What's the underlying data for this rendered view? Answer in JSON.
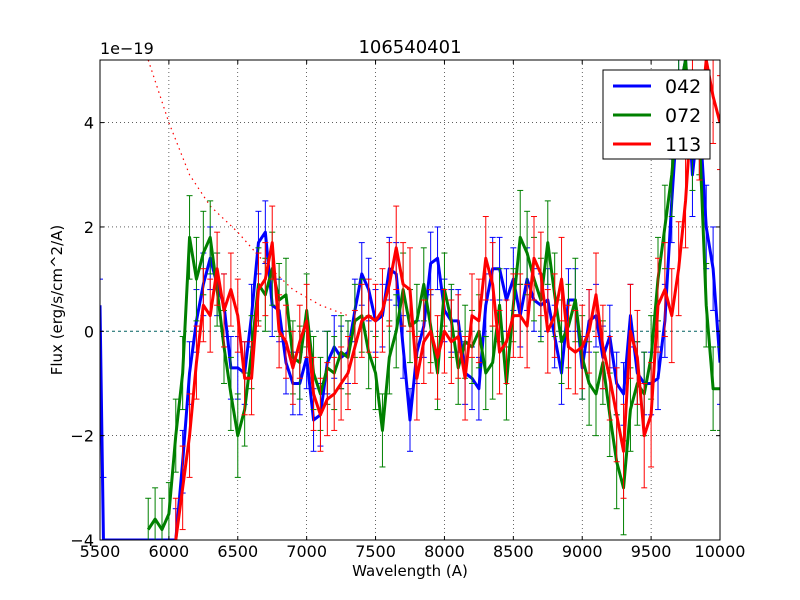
{
  "chart_data": {
    "type": "line",
    "title": "106540401",
    "xlabel": "Wavelength (A)",
    "ylabel": "Flux (erg/s/cm^2/A)",
    "y_scale_label": "1e−19",
    "xlim": [
      5500,
      10000
    ],
    "ylim": [
      -4.0,
      5.2
    ],
    "xticks": [
      5500,
      6000,
      6500,
      7000,
      7500,
      8000,
      8500,
      9000,
      9500,
      10000
    ],
    "xtick_labels": [
      "5500",
      "6000",
      "6500",
      "7000",
      "7500",
      "8000",
      "8500",
      "9000",
      "9500",
      "10000"
    ],
    "yticks": [
      -4,
      -2,
      0,
      2,
      4
    ],
    "ytick_labels": [
      "−4",
      "−2",
      "0",
      "2",
      "4"
    ],
    "grid": true,
    "legend_position": "top-right",
    "reference_lines": [
      {
        "name": "zero-line",
        "style": "dashed",
        "color": "#006060",
        "y": 0
      },
      {
        "name": "sky-model",
        "style": "dotted",
        "color": "#ff0000",
        "x": [
          5850,
          6000,
          6150,
          6300,
          6500,
          6700,
          6900,
          7100,
          7300
        ],
        "y": [
          5.2,
          4.0,
          3.0,
          2.4,
          1.9,
          1.3,
          0.8,
          0.5,
          0.3
        ]
      }
    ],
    "series": [
      {
        "name": "042",
        "color": "#0000ff",
        "x": [
          5500,
          5525,
          6050,
          6100,
          6150,
          6200,
          6250,
          6300,
          6350,
          6400,
          6450,
          6500,
          6550,
          6600,
          6650,
          6700,
          6750,
          6800,
          6850,
          6900,
          6950,
          7000,
          7050,
          7100,
          7150,
          7200,
          7250,
          7300,
          7350,
          7400,
          7450,
          7500,
          7550,
          7600,
          7650,
          7700,
          7750,
          7800,
          7850,
          7900,
          7950,
          8000,
          8050,
          8100,
          8150,
          8200,
          8250,
          8300,
          8350,
          8400,
          8450,
          8500,
          8550,
          8600,
          8650,
          8700,
          8750,
          8800,
          8850,
          8900,
          8950,
          9000,
          9050,
          9100,
          9150,
          9200,
          9250,
          9300,
          9350,
          9400,
          9450,
          9500,
          9550,
          9600,
          9650,
          9700,
          9750,
          9800,
          9850,
          9900,
          9950,
          10000
        ],
        "y": [
          0.5,
          -4.0,
          -4.0,
          -2.5,
          -0.8,
          0.2,
          0.9,
          1.4,
          0.9,
          0.5,
          -0.7,
          -0.7,
          -0.8,
          0.3,
          1.7,
          1.9,
          0.5,
          0.4,
          -0.6,
          -1.0,
          -1.0,
          -0.5,
          -1.7,
          -1.6,
          -0.6,
          -0.3,
          -0.5,
          -0.4,
          0.4,
          1.1,
          0.8,
          0.2,
          0.3,
          1.2,
          1.1,
          -0.3,
          -1.7,
          -0.4,
          0.1,
          1.3,
          1.4,
          0.4,
          0.2,
          0.2,
          -0.8,
          -0.9,
          -1.1,
          0.5,
          1.2,
          1.2,
          0.6,
          1.0,
          0.3,
          1.0,
          0.6,
          0.5,
          0.6,
          -0.1,
          -0.8,
          0.6,
          0.6,
          -0.7,
          0.2,
          0.3,
          -0.5,
          -0.1,
          -1.0,
          -1.2,
          0.3,
          -0.8,
          -1.0,
          -1.0,
          -0.9,
          0.2,
          2.5,
          4.5,
          5.2,
          3.0,
          4.2,
          2.0,
          1.2,
          -0.6
        ],
        "err": [
          0.5,
          1.2,
          0.6,
          0.6,
          0.6,
          0.6,
          0.6,
          0.6,
          0.6,
          0.6,
          0.6,
          0.6,
          0.6,
          0.6,
          0.6,
          0.6,
          0.6,
          0.6,
          0.6,
          0.6,
          0.6,
          0.6,
          0.6,
          0.6,
          0.6,
          0.6,
          0.6,
          0.6,
          0.6,
          0.6,
          0.6,
          0.6,
          0.6,
          0.6,
          0.6,
          0.6,
          0.6,
          0.6,
          0.6,
          0.6,
          0.6,
          0.6,
          0.6,
          0.6,
          0.6,
          0.6,
          0.6,
          0.6,
          0.6,
          0.6,
          0.6,
          0.6,
          0.6,
          0.6,
          0.6,
          0.6,
          0.6,
          0.6,
          0.6,
          0.6,
          0.6,
          0.6,
          0.6,
          0.6,
          0.6,
          0.6,
          0.6,
          0.6,
          0.6,
          0.6,
          0.6,
          0.6,
          0.6,
          0.7,
          0.8,
          0.8,
          0.8,
          0.8,
          0.8,
          0.8,
          0.8,
          0.8
        ]
      },
      {
        "name": "072",
        "color": "#008000",
        "x": [
          5850,
          5900,
          5950,
          6000,
          6050,
          6100,
          6150,
          6200,
          6250,
          6300,
          6350,
          6400,
          6450,
          6500,
          6550,
          6600,
          6650,
          6700,
          6750,
          6800,
          6850,
          6900,
          6950,
          7000,
          7050,
          7100,
          7150,
          7200,
          7250,
          7300,
          7350,
          7400,
          7450,
          7500,
          7550,
          7600,
          7650,
          7700,
          7750,
          7800,
          7850,
          7900,
          7950,
          8000,
          8050,
          8100,
          8150,
          8200,
          8250,
          8300,
          8350,
          8400,
          8450,
          8500,
          8550,
          8600,
          8650,
          8700,
          8750,
          8800,
          8850,
          8900,
          8950,
          9000,
          9050,
          9100,
          9150,
          9200,
          9250,
          9300,
          9350,
          9400,
          9450,
          9500,
          9550,
          9600,
          9650,
          9700,
          9750,
          9800,
          9850,
          9900,
          9950,
          10000
        ],
        "y": [
          -3.8,
          -3.6,
          -3.8,
          -3.5,
          -2.0,
          -0.8,
          1.8,
          1.0,
          1.5,
          1.8,
          0.8,
          -0.3,
          -1.2,
          -2.0,
          -1.5,
          -0.4,
          0.9,
          0.7,
          1.2,
          0.6,
          0.7,
          -0.5,
          -0.6,
          0.4,
          -0.8,
          -1.2,
          -0.7,
          -0.8,
          -0.4,
          -0.5,
          0.2,
          0.3,
          -0.4,
          -0.8,
          -1.9,
          -0.5,
          0.0,
          0.8,
          0.1,
          0.2,
          0.9,
          0.1,
          -0.8,
          0.8,
          0.2,
          -0.7,
          -0.2,
          -0.3,
          0.0,
          -0.8,
          -0.6,
          0.5,
          -1.0,
          0.5,
          1.8,
          1.5,
          1.0,
          0.6,
          1.7,
          0.7,
          -0.2,
          0.1,
          0.6,
          -0.5,
          -1.0,
          -1.2,
          -0.6,
          -1.6,
          -2.5,
          -3.0,
          -1.5,
          -1.0,
          -1.2,
          -0.5,
          1.0,
          2.0,
          3.0,
          4.5,
          5.2,
          3.5,
          3.8,
          0.5,
          -1.1,
          -1.1
        ],
        "err": [
          0.6,
          0.6,
          0.6,
          0.6,
          0.7,
          0.7,
          0.8,
          0.8,
          0.8,
          0.7,
          0.7,
          0.7,
          0.7,
          0.8,
          0.7,
          0.7,
          0.7,
          0.7,
          0.7,
          0.7,
          0.7,
          0.7,
          0.7,
          0.7,
          0.7,
          0.7,
          0.7,
          0.7,
          0.7,
          0.7,
          0.7,
          0.7,
          0.7,
          0.7,
          0.7,
          0.7,
          0.7,
          0.7,
          0.7,
          0.7,
          0.7,
          0.7,
          0.7,
          0.7,
          0.7,
          0.7,
          0.7,
          0.7,
          0.7,
          0.7,
          0.7,
          0.7,
          0.7,
          0.7,
          0.9,
          0.8,
          0.8,
          0.8,
          0.8,
          0.8,
          0.8,
          0.8,
          0.8,
          0.8,
          0.8,
          0.8,
          0.8,
          0.8,
          0.9,
          0.9,
          0.8,
          0.8,
          0.8,
          0.8,
          0.8,
          0.8,
          0.8,
          0.8,
          0.8,
          0.8,
          0.8,
          0.8,
          0.8,
          0.8
        ]
      },
      {
        "name": "113",
        "color": "#ff0000",
        "x": [
          6050,
          6100,
          6150,
          6200,
          6250,
          6300,
          6350,
          6400,
          6450,
          6500,
          6550,
          6600,
          6650,
          6700,
          6750,
          6800,
          6850,
          6900,
          6950,
          7000,
          7050,
          7100,
          7150,
          7200,
          7250,
          7300,
          7350,
          7400,
          7450,
          7500,
          7550,
          7600,
          7650,
          7700,
          7750,
          7800,
          7850,
          7900,
          7950,
          8000,
          8050,
          8100,
          8150,
          8200,
          8250,
          8300,
          8350,
          8400,
          8450,
          8500,
          8550,
          8600,
          8650,
          8700,
          8750,
          8800,
          8850,
          8900,
          8950,
          9000,
          9050,
          9100,
          9150,
          9200,
          9250,
          9300,
          9350,
          9400,
          9450,
          9500,
          9550,
          9600,
          9650,
          9700,
          9750,
          9800,
          9850,
          9900,
          9950,
          10000
        ],
        "y": [
          -4.0,
          -3.0,
          -2.0,
          -0.6,
          0.5,
          0.3,
          1.2,
          0.4,
          0.8,
          0.3,
          -0.9,
          -0.9,
          0.8,
          1.0,
          1.7,
          0.0,
          -0.2,
          -0.7,
          -0.2,
          0.2,
          -1.2,
          -1.6,
          -1.3,
          -1.2,
          -1.0,
          -0.8,
          -0.3,
          0.2,
          0.3,
          0.2,
          0.4,
          0.9,
          1.6,
          0.9,
          0.8,
          -0.9,
          -0.2,
          0.0,
          -0.5,
          0.0,
          -0.2,
          -0.1,
          -0.9,
          0.3,
          0.2,
          1.4,
          0.9,
          -0.4,
          -0.2,
          0.3,
          0.3,
          0.1,
          1.4,
          1.1,
          0.0,
          0.3,
          1.0,
          -0.3,
          -0.4,
          -0.3,
          0.0,
          0.7,
          -0.3,
          -0.9,
          -1.6,
          -2.3,
          0.0,
          -0.5,
          -2.0,
          -1.6,
          0.5,
          0.8,
          0.3,
          1.2,
          2.5,
          4.5,
          3.8,
          5.2,
          4.5,
          4.0
        ],
        "err": [
          0.8,
          0.8,
          0.8,
          0.7,
          0.7,
          0.7,
          0.7,
          0.7,
          0.7,
          0.7,
          0.7,
          0.7,
          0.7,
          0.7,
          0.7,
          0.7,
          0.7,
          0.7,
          0.7,
          0.7,
          0.7,
          0.7,
          0.7,
          0.7,
          0.7,
          0.7,
          0.7,
          0.7,
          0.7,
          0.7,
          0.8,
          0.8,
          0.8,
          0.8,
          0.8,
          0.8,
          0.8,
          0.8,
          0.8,
          0.8,
          0.8,
          0.8,
          0.8,
          0.8,
          0.8,
          0.8,
          0.8,
          0.8,
          0.8,
          0.8,
          0.8,
          0.8,
          0.8,
          0.8,
          0.8,
          0.8,
          0.8,
          0.8,
          0.8,
          0.8,
          0.8,
          0.8,
          0.8,
          0.8,
          0.9,
          0.9,
          0.9,
          0.9,
          1.0,
          1.0,
          0.9,
          0.9,
          0.9,
          0.9,
          0.9,
          0.9,
          0.9,
          0.9,
          0.9,
          0.9
        ]
      }
    ]
  }
}
